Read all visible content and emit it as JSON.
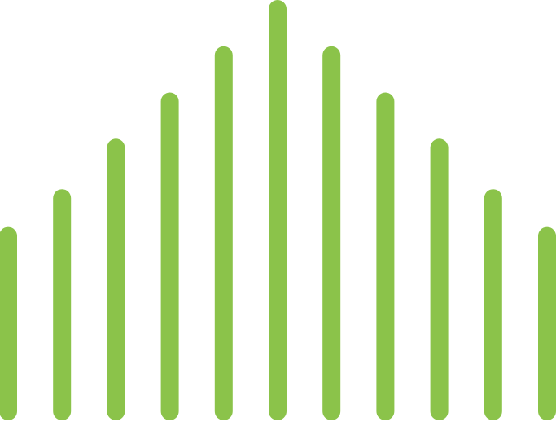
{
  "graphic": {
    "kind": "symmetric-bar-pattern",
    "color": "#8BC34A",
    "bar_count": 11,
    "relative_levels": [
      0.46,
      0.55,
      0.67,
      0.78,
      0.89,
      1.0,
      0.89,
      0.78,
      0.67,
      0.55,
      0.46
    ]
  }
}
